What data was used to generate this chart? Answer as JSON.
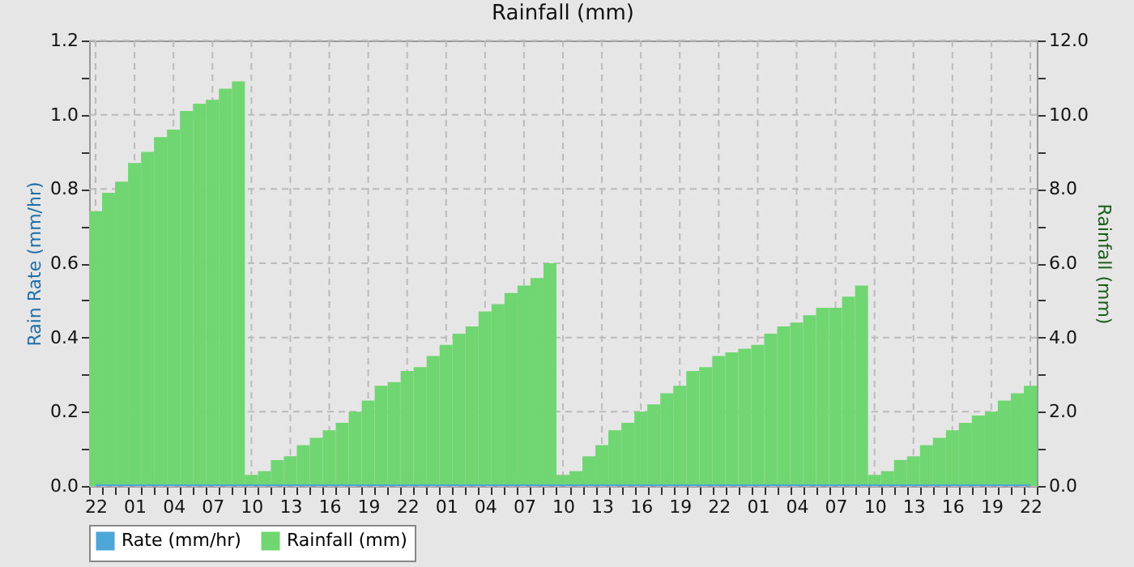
{
  "chart_data": {
    "type": "bar",
    "title": "Rainfall (mm)",
    "ylabel": "Rain Rate (mm/hr)",
    "y2label": "Rainfall (mm)",
    "categories": [
      "22",
      null,
      null,
      "01",
      null,
      null,
      "04",
      null,
      null,
      "07",
      null,
      null,
      "10",
      null,
      null,
      "13",
      null,
      null,
      "16",
      null,
      null,
      "19",
      null,
      null,
      "22",
      null,
      null,
      "01",
      null,
      null,
      "04",
      null,
      null,
      "07",
      null,
      null,
      "10",
      null,
      null,
      "13",
      null,
      null,
      "16",
      null,
      null,
      "19",
      null,
      null,
      "22",
      null,
      null,
      "01",
      null,
      null,
      "04",
      null,
      null,
      "07",
      null,
      null,
      "10",
      null,
      null,
      "13",
      null,
      null,
      "16",
      null,
      null,
      "19",
      null,
      null,
      "22"
    ],
    "series": [
      {
        "name": "Rate (mm/hr)",
        "type": "line",
        "axis": "y",
        "color": "#4da6d9",
        "values": [
          0,
          0,
          0,
          0,
          0,
          0,
          0,
          0,
          0,
          0,
          0,
          0,
          0,
          0,
          0,
          0,
          0,
          0,
          0,
          0,
          0,
          0,
          0,
          0,
          0,
          0,
          0,
          0,
          0,
          0,
          0,
          0,
          0,
          0,
          0,
          0,
          0,
          0,
          0,
          0,
          0,
          0,
          0,
          0,
          0,
          0,
          0,
          0,
          0,
          0,
          0,
          0,
          0,
          0,
          0,
          0,
          0,
          0,
          0,
          0,
          0,
          0,
          0,
          0,
          0,
          0,
          0,
          0,
          0,
          0,
          0,
          0,
          0
        ]
      },
      {
        "name": "Rainfall (mm)",
        "axis": "y2",
        "color": "#6fd672",
        "values": [
          7.4,
          7.9,
          8.2,
          8.7,
          9.0,
          9.4,
          9.6,
          10.1,
          10.3,
          10.4,
          10.7,
          10.9,
          0.3,
          0.4,
          0.7,
          0.8,
          1.1,
          1.3,
          1.5,
          1.7,
          2.0,
          2.3,
          2.7,
          2.8,
          3.1,
          3.2,
          3.5,
          3.8,
          4.1,
          4.3,
          4.7,
          4.9,
          5.2,
          5.4,
          5.6,
          6.0,
          0.3,
          0.4,
          0.8,
          1.1,
          1.5,
          1.7,
          2.0,
          2.2,
          2.5,
          2.7,
          3.1,
          3.2,
          3.5,
          3.6,
          3.7,
          3.8,
          4.1,
          4.3,
          4.4,
          4.6,
          4.8,
          4.8,
          5.1,
          5.4,
          0.3,
          0.4,
          0.7,
          0.8,
          1.1,
          1.3,
          1.5,
          1.7,
          1.9,
          2.0,
          2.3,
          2.5,
          2.7
        ]
      }
    ],
    "ylim": [
      0,
      1.2
    ],
    "yticks": [
      {
        "value": 0,
        "label": "0.0"
      },
      {
        "value": 0.1,
        "label": null
      },
      {
        "value": 0.2,
        "label": "0.2"
      },
      {
        "value": 0.3,
        "label": null
      },
      {
        "value": 0.4,
        "label": "0.4"
      },
      {
        "value": 0.5,
        "label": null
      },
      {
        "value": 0.6,
        "label": "0.6"
      },
      {
        "value": 0.7,
        "label": null
      },
      {
        "value": 0.8,
        "label": "0.8"
      },
      {
        "value": 0.9,
        "label": null
      },
      {
        "value": 1.0,
        "label": "1.0"
      },
      {
        "value": 1.1,
        "label": null
      },
      {
        "value": 1.2,
        "label": "1.2"
      }
    ],
    "y2lim": [
      0,
      12
    ],
    "y2ticks": [
      {
        "value": 0,
        "label": "0.0"
      },
      {
        "value": 1,
        "label": null
      },
      {
        "value": 2,
        "label": "2.0"
      },
      {
        "value": 3,
        "label": null
      },
      {
        "value": 4,
        "label": "4.0"
      },
      {
        "value": 5,
        "label": null
      },
      {
        "value": 6,
        "label": "6.0"
      },
      {
        "value": 7,
        "label": null
      },
      {
        "value": 8,
        "label": "8.0"
      },
      {
        "value": 9,
        "label": null
      },
      {
        "value": 10,
        "label": "10.0"
      },
      {
        "value": 11,
        "label": null
      },
      {
        "value": 12,
        "label": "12.0"
      }
    ],
    "grid": true,
    "legend": "bottom",
    "line_style": "solid",
    "marker": "none"
  }
}
